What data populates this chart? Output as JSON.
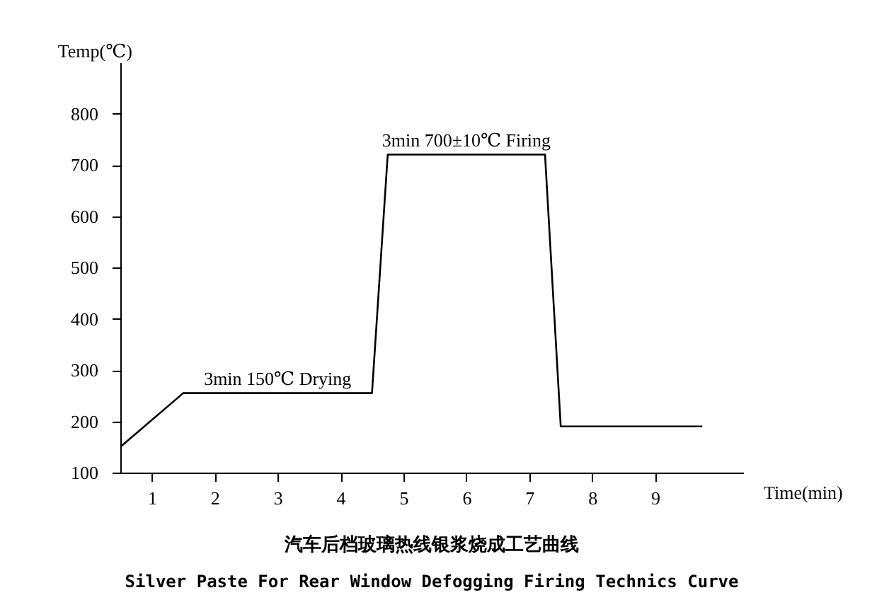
{
  "chart_data": {
    "type": "line",
    "title": "汽车后档玻璃热线银浆烧成工艺曲线",
    "subtitle": "Silver Paste For Rear Window Defogging Firing Technics Curve",
    "xlabel": "Time(min)",
    "ylabel": "Temp(℃)",
    "x": [
      0.5,
      1.5,
      4.5,
      4.75,
      7.25,
      7.5,
      9.75
    ],
    "series": [
      {
        "color": "#000000",
        "values": [
          150,
          255,
          255,
          720,
          720,
          190,
          190
        ]
      }
    ],
    "xlim": [
      0.5,
      10.4
    ],
    "xticks": [
      1,
      2,
      3,
      4,
      5,
      6,
      7,
      8,
      9
    ],
    "ylim": [
      100,
      900
    ],
    "yticks": [
      100,
      200,
      300,
      400,
      500,
      600,
      700,
      800
    ],
    "grid": false,
    "marker": "none",
    "line_style": "solid",
    "annotations": [
      {
        "text": "3min 150℃ Drying",
        "x": 3,
        "y": 255
      },
      {
        "text": "3min 700±10℃ Firing",
        "x": 6,
        "y": 720
      }
    ]
  }
}
